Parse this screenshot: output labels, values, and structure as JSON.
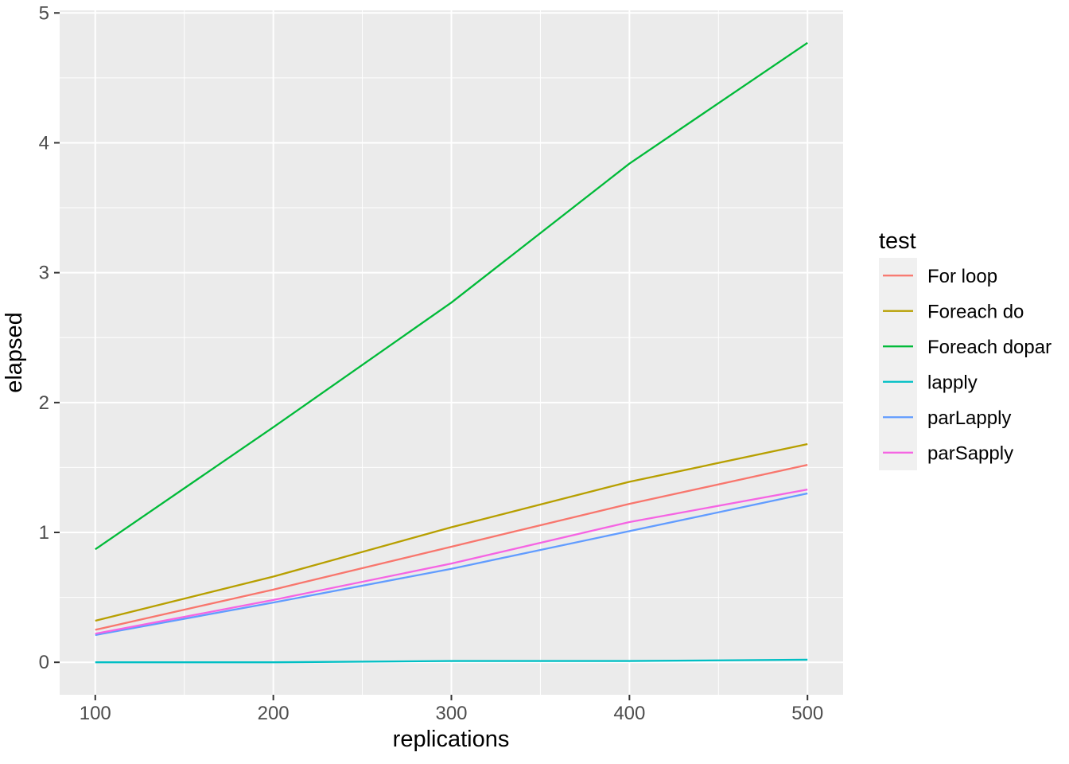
{
  "chart_data": {
    "type": "line",
    "title": "",
    "xlabel": "replications",
    "ylabel": "elapsed",
    "legend_title": "test",
    "legend_position": "right",
    "grid": "major and minor, white on gray panel",
    "x": [
      100,
      200,
      300,
      400,
      500
    ],
    "x_ticks": [
      100,
      200,
      300,
      400,
      500
    ],
    "x_minor_ticks": [
      150,
      250,
      350,
      450
    ],
    "y_ticks": [
      0,
      1,
      2,
      3,
      4,
      5
    ],
    "y_minor_ticks": [
      0.5,
      1.5,
      2.5,
      3.5,
      4.5
    ],
    "x_domain": [
      80,
      520
    ],
    "y_domain": [
      -0.25,
      5.02
    ],
    "series": [
      {
        "name": "For loop",
        "color": "#F8766D",
        "values": [
          0.25,
          0.56,
          0.89,
          1.22,
          1.52
        ]
      },
      {
        "name": "Foreach do",
        "color": "#B79F00",
        "values": [
          0.32,
          0.66,
          1.04,
          1.39,
          1.68
        ]
      },
      {
        "name": "Foreach dopar",
        "color": "#00BA38",
        "values": [
          0.87,
          1.81,
          2.77,
          3.84,
          4.77
        ]
      },
      {
        "name": "lapply",
        "color": "#00BFC4",
        "values": [
          0.0,
          0.0,
          0.01,
          0.01,
          0.02
        ]
      },
      {
        "name": "parLapply",
        "color": "#619CFF",
        "values": [
          0.21,
          0.46,
          0.72,
          1.01,
          1.3
        ]
      },
      {
        "name": "parSapply",
        "color": "#F564E3",
        "values": [
          0.22,
          0.48,
          0.76,
          1.08,
          1.33
        ]
      }
    ],
    "colors": {
      "page_background": "#FFFFFF",
      "panel_background": "#EBEBEB",
      "grid": "#FFFFFF",
      "tick_label_text": "#4D4D4D",
      "axis_title_text": "#000000",
      "tick_mark": "#333333",
      "legend_key_background": "#F0F0F0",
      "legend_label_text": "#000000"
    }
  }
}
